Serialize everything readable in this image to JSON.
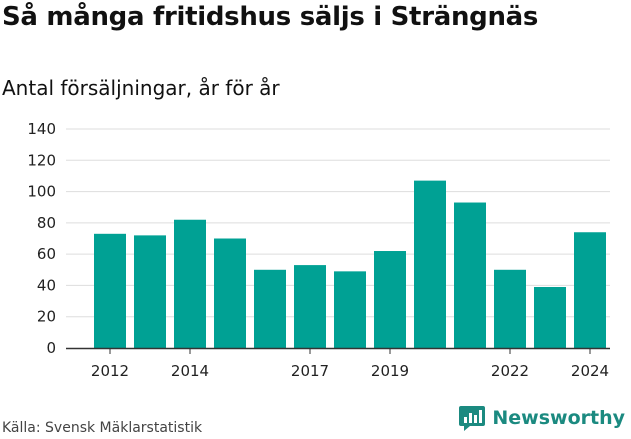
{
  "title": "Så många fritidshus säljs i Strängnäs",
  "subtitle": "Antal försäljningar, år för år",
  "source": "Källa: Svensk Mäklarstatistik",
  "logo": {
    "text": "Newsworthy",
    "icon": "newsworthy-logo-icon",
    "color": "#1b8a80"
  },
  "colors": {
    "bar": "#00a194",
    "grid": "#dddddd",
    "axis": "#333333"
  },
  "chart_data": {
    "type": "bar",
    "categories": [
      "2012",
      "2013",
      "2014",
      "2015",
      "2016",
      "2017",
      "2018",
      "2019",
      "2020",
      "2021",
      "2022",
      "2023",
      "2024"
    ],
    "values": [
      73,
      72,
      82,
      70,
      50,
      53,
      49,
      62,
      107,
      93,
      50,
      39,
      74
    ],
    "x_tick_labels": [
      {
        "category": "2012",
        "label": "2012"
      },
      {
        "category": "2014",
        "label": "2014"
      },
      {
        "category": "2017",
        "label": "2017"
      },
      {
        "category": "2019",
        "label": "2019"
      },
      {
        "category": "2022",
        "label": "2022"
      },
      {
        "category": "2024",
        "label": "2024"
      }
    ],
    "y_ticks": [
      0,
      20,
      40,
      60,
      80,
      100,
      120,
      140
    ],
    "ylim": [
      0,
      140
    ],
    "grid": true,
    "legend": "none"
  }
}
